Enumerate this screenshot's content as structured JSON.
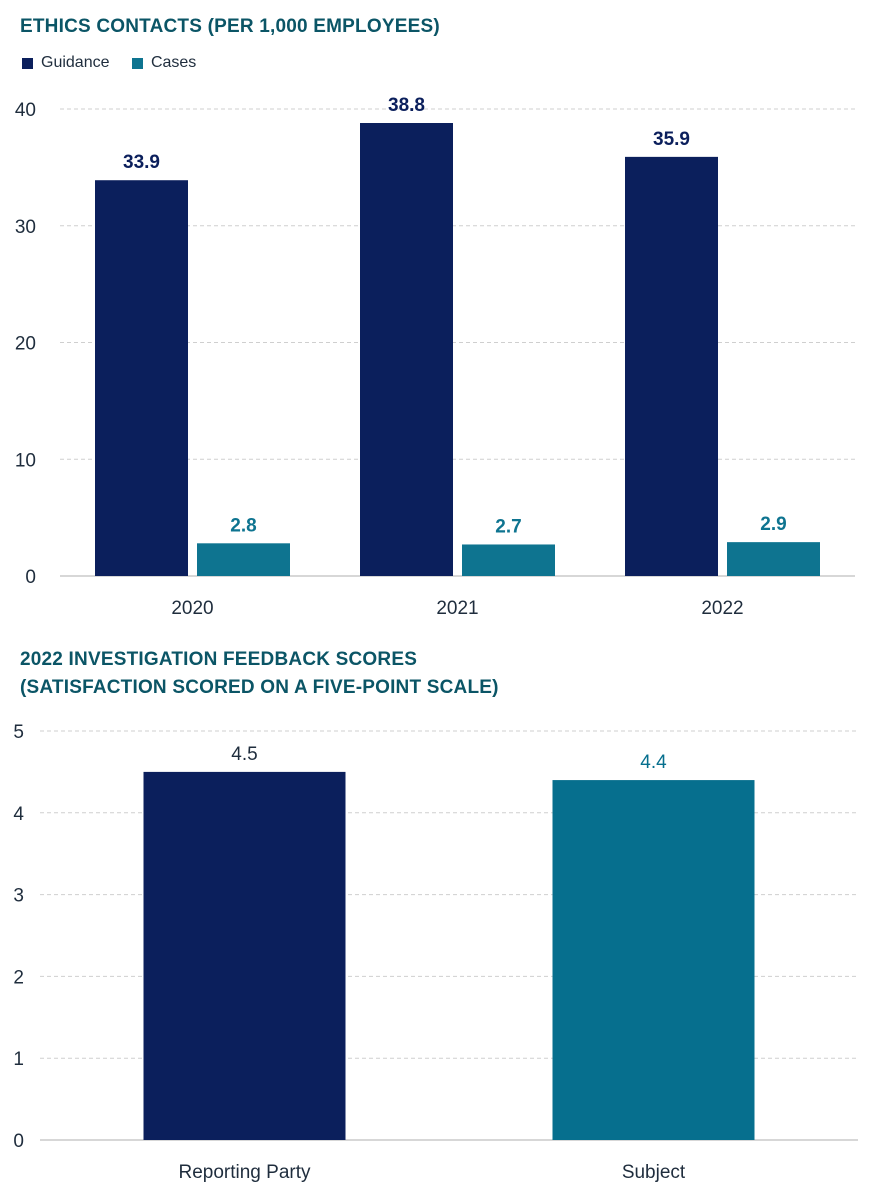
{
  "chart_data": [
    {
      "type": "bar",
      "title": "ETHICS CONTACTS (PER 1,000 EMPLOYEES)",
      "categories": [
        "2020",
        "2021",
        "2022"
      ],
      "series": [
        {
          "name": "Guidance",
          "values": [
            33.9,
            38.8,
            35.9
          ],
          "color": "#0b1f5c"
        },
        {
          "name": "Cases",
          "values": [
            2.8,
            2.7,
            2.9
          ],
          "color": "#0e7490"
        }
      ],
      "data_labels": {
        "Guidance": [
          "33.9",
          "38.8",
          "35.9"
        ],
        "Cases": [
          "2.8",
          "2.7",
          "2.9"
        ]
      },
      "ylim": [
        0,
        40
      ],
      "yticks": [
        "0",
        "10",
        "20",
        "30",
        "40"
      ],
      "grid": true,
      "legend": "top-left"
    },
    {
      "type": "bar",
      "title_lines": [
        "2022 INVESTIGATION FEEDBACK SCORES",
        "(SATISFACTION SCORED ON A FIVE-POINT SCALE)"
      ],
      "categories": [
        "Reporting Party",
        "Subject"
      ],
      "values": [
        4.5,
        4.4
      ],
      "data_labels": [
        "4.5",
        "4.4"
      ],
      "colors": [
        "#0b1f5c",
        "#066f8e"
      ],
      "ylim": [
        0,
        5
      ],
      "yticks": [
        "0",
        "1",
        "2",
        "3",
        "4",
        "5"
      ],
      "grid": true
    }
  ]
}
